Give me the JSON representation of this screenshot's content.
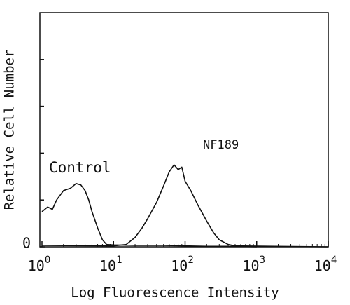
{
  "chart_data": {
    "type": "line",
    "x_label": "Log Fluorescence Intensity",
    "y_label": "Relative Cell Number",
    "xscale": "log",
    "xlim": [
      1,
      10000
    ],
    "ylim": [
      0,
      5
    ],
    "xticks": [
      {
        "value": 1,
        "label": "10",
        "power": "0"
      },
      {
        "value": 10,
        "label": "10",
        "power": "1"
      },
      {
        "value": 100,
        "label": "10",
        "power": "2"
      },
      {
        "value": 1000,
        "label": "10",
        "power": "3"
      },
      {
        "value": 10000,
        "label": "10",
        "power": "4"
      }
    ],
    "yticks": [
      0
    ],
    "yminor_ticks": [
      1,
      2,
      3,
      4
    ],
    "series": [
      {
        "name": "Control",
        "color": "#111111",
        "x": [
          1,
          1.2,
          1.4,
          1.6,
          2,
          2.5,
          3,
          3.5,
          4,
          4.5,
          5,
          6,
          7,
          8,
          10,
          20,
          50,
          100,
          200,
          500,
          1000
        ],
        "values": [
          0.75,
          0.85,
          0.8,
          1.0,
          1.2,
          1.25,
          1.35,
          1.32,
          1.2,
          1.0,
          0.75,
          0.4,
          0.15,
          0.05,
          0.04,
          0.03,
          0.03,
          0.02,
          0.01,
          0.01,
          0
        ]
      },
      {
        "name": "NF189",
        "color": "#111111",
        "x": [
          1,
          10,
          15,
          20,
          25,
          30,
          40,
          50,
          60,
          70,
          80,
          90,
          100,
          120,
          150,
          200,
          250,
          300,
          400,
          500,
          10000
        ],
        "values": [
          0.03,
          0.02,
          0.05,
          0.2,
          0.4,
          0.6,
          0.95,
          1.3,
          1.6,
          1.75,
          1.65,
          1.7,
          1.4,
          1.2,
          0.9,
          0.55,
          0.3,
          0.15,
          0.05,
          0.02,
          0
        ]
      }
    ]
  }
}
